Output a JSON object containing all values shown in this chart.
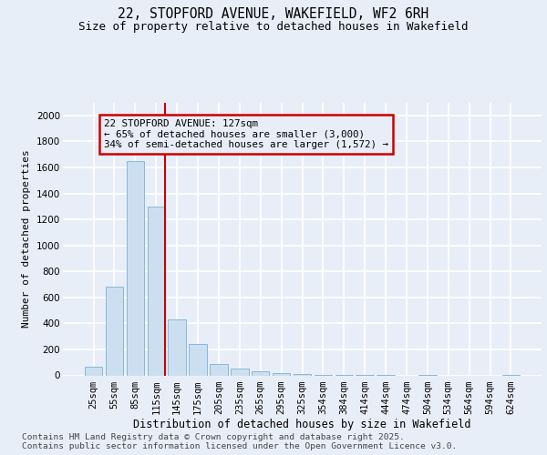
{
  "title": "22, STOPFORD AVENUE, WAKEFIELD, WF2 6RH",
  "subtitle": "Size of property relative to detached houses in Wakefield",
  "xlabel": "Distribution of detached houses by size in Wakefield",
  "ylabel": "Number of detached properties",
  "categories": [
    "25sqm",
    "55sqm",
    "85sqm",
    "115sqm",
    "145sqm",
    "175sqm",
    "205sqm",
    "235sqm",
    "265sqm",
    "295sqm",
    "325sqm",
    "354sqm",
    "384sqm",
    "414sqm",
    "444sqm",
    "474sqm",
    "504sqm",
    "534sqm",
    "564sqm",
    "594sqm",
    "624sqm"
  ],
  "values": [
    70,
    680,
    1650,
    1300,
    430,
    240,
    85,
    50,
    35,
    20,
    10,
    5,
    3,
    2,
    2,
    0,
    1,
    0,
    0,
    0,
    2
  ],
  "bar_color": "#ccdff0",
  "bar_edge_color": "#88b8d8",
  "background_color": "#e8eef8",
  "vline_color": "#cc0000",
  "box_edge_color": "#cc0000",
  "ann_line1": "22 STOPFORD AVENUE: 127sqm",
  "ann_line2": "← 65% of detached houses are smaller (3,000)",
  "ann_line3": "34% of semi-detached houses are larger (1,572) →",
  "footer_text": "Contains HM Land Registry data © Crown copyright and database right 2025.\nContains public sector information licensed under the Open Government Licence v3.0.",
  "ylim": [
    0,
    2100
  ],
  "yticks": [
    0,
    200,
    400,
    600,
    800,
    1000,
    1200,
    1400,
    1600,
    1800,
    2000
  ],
  "vline_position": 3.42
}
